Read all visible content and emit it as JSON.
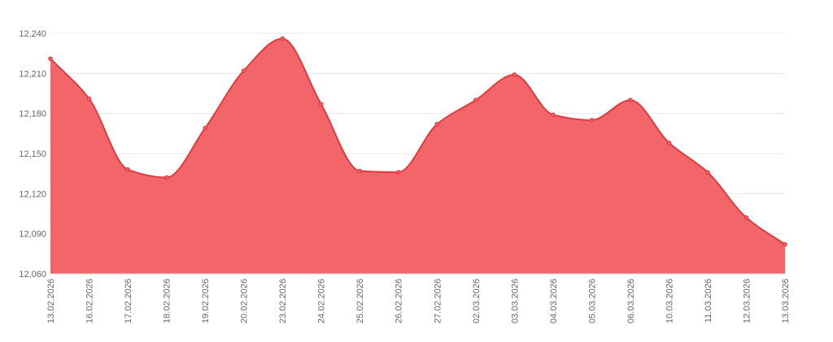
{
  "chart_data": {
    "type": "area",
    "title": "",
    "xlabel": "",
    "ylabel": "",
    "x": [
      "13.02.2026",
      "16.02.2026",
      "17.02.2026",
      "18.02.2026",
      "19.02.2026",
      "20.02.2026",
      "23.02.2026",
      "24.02.2026",
      "25.02.2026",
      "26.02.2026",
      "27.02.2026",
      "02.03.2026",
      "03.03.2026",
      "04.03.2026",
      "05.03.2026",
      "06.03.2026",
      "10.03.2026",
      "11.03.2026",
      "12.03.2026",
      "13.03.2026"
    ],
    "series": [
      {
        "values": [
          12221,
          12191,
          12138,
          12132,
          12169,
          12212,
          12236,
          12187,
          12137,
          12136,
          12172,
          12190,
          12209,
          12179,
          12175,
          12190,
          12158,
          12136,
          12102,
          12082
        ],
        "color": "#f26669",
        "line_color": "#e03a3e"
      }
    ],
    "ylim": [
      12060,
      12240
    ],
    "yticks": [
      12060,
      12090,
      12120,
      12150,
      12180,
      12210,
      12240
    ],
    "ytick_labels": [
      "12,060",
      "12,090",
      "12,120",
      "12,150",
      "12,180",
      "12,210",
      "12,240"
    ],
    "grid": true,
    "legend": "none"
  }
}
